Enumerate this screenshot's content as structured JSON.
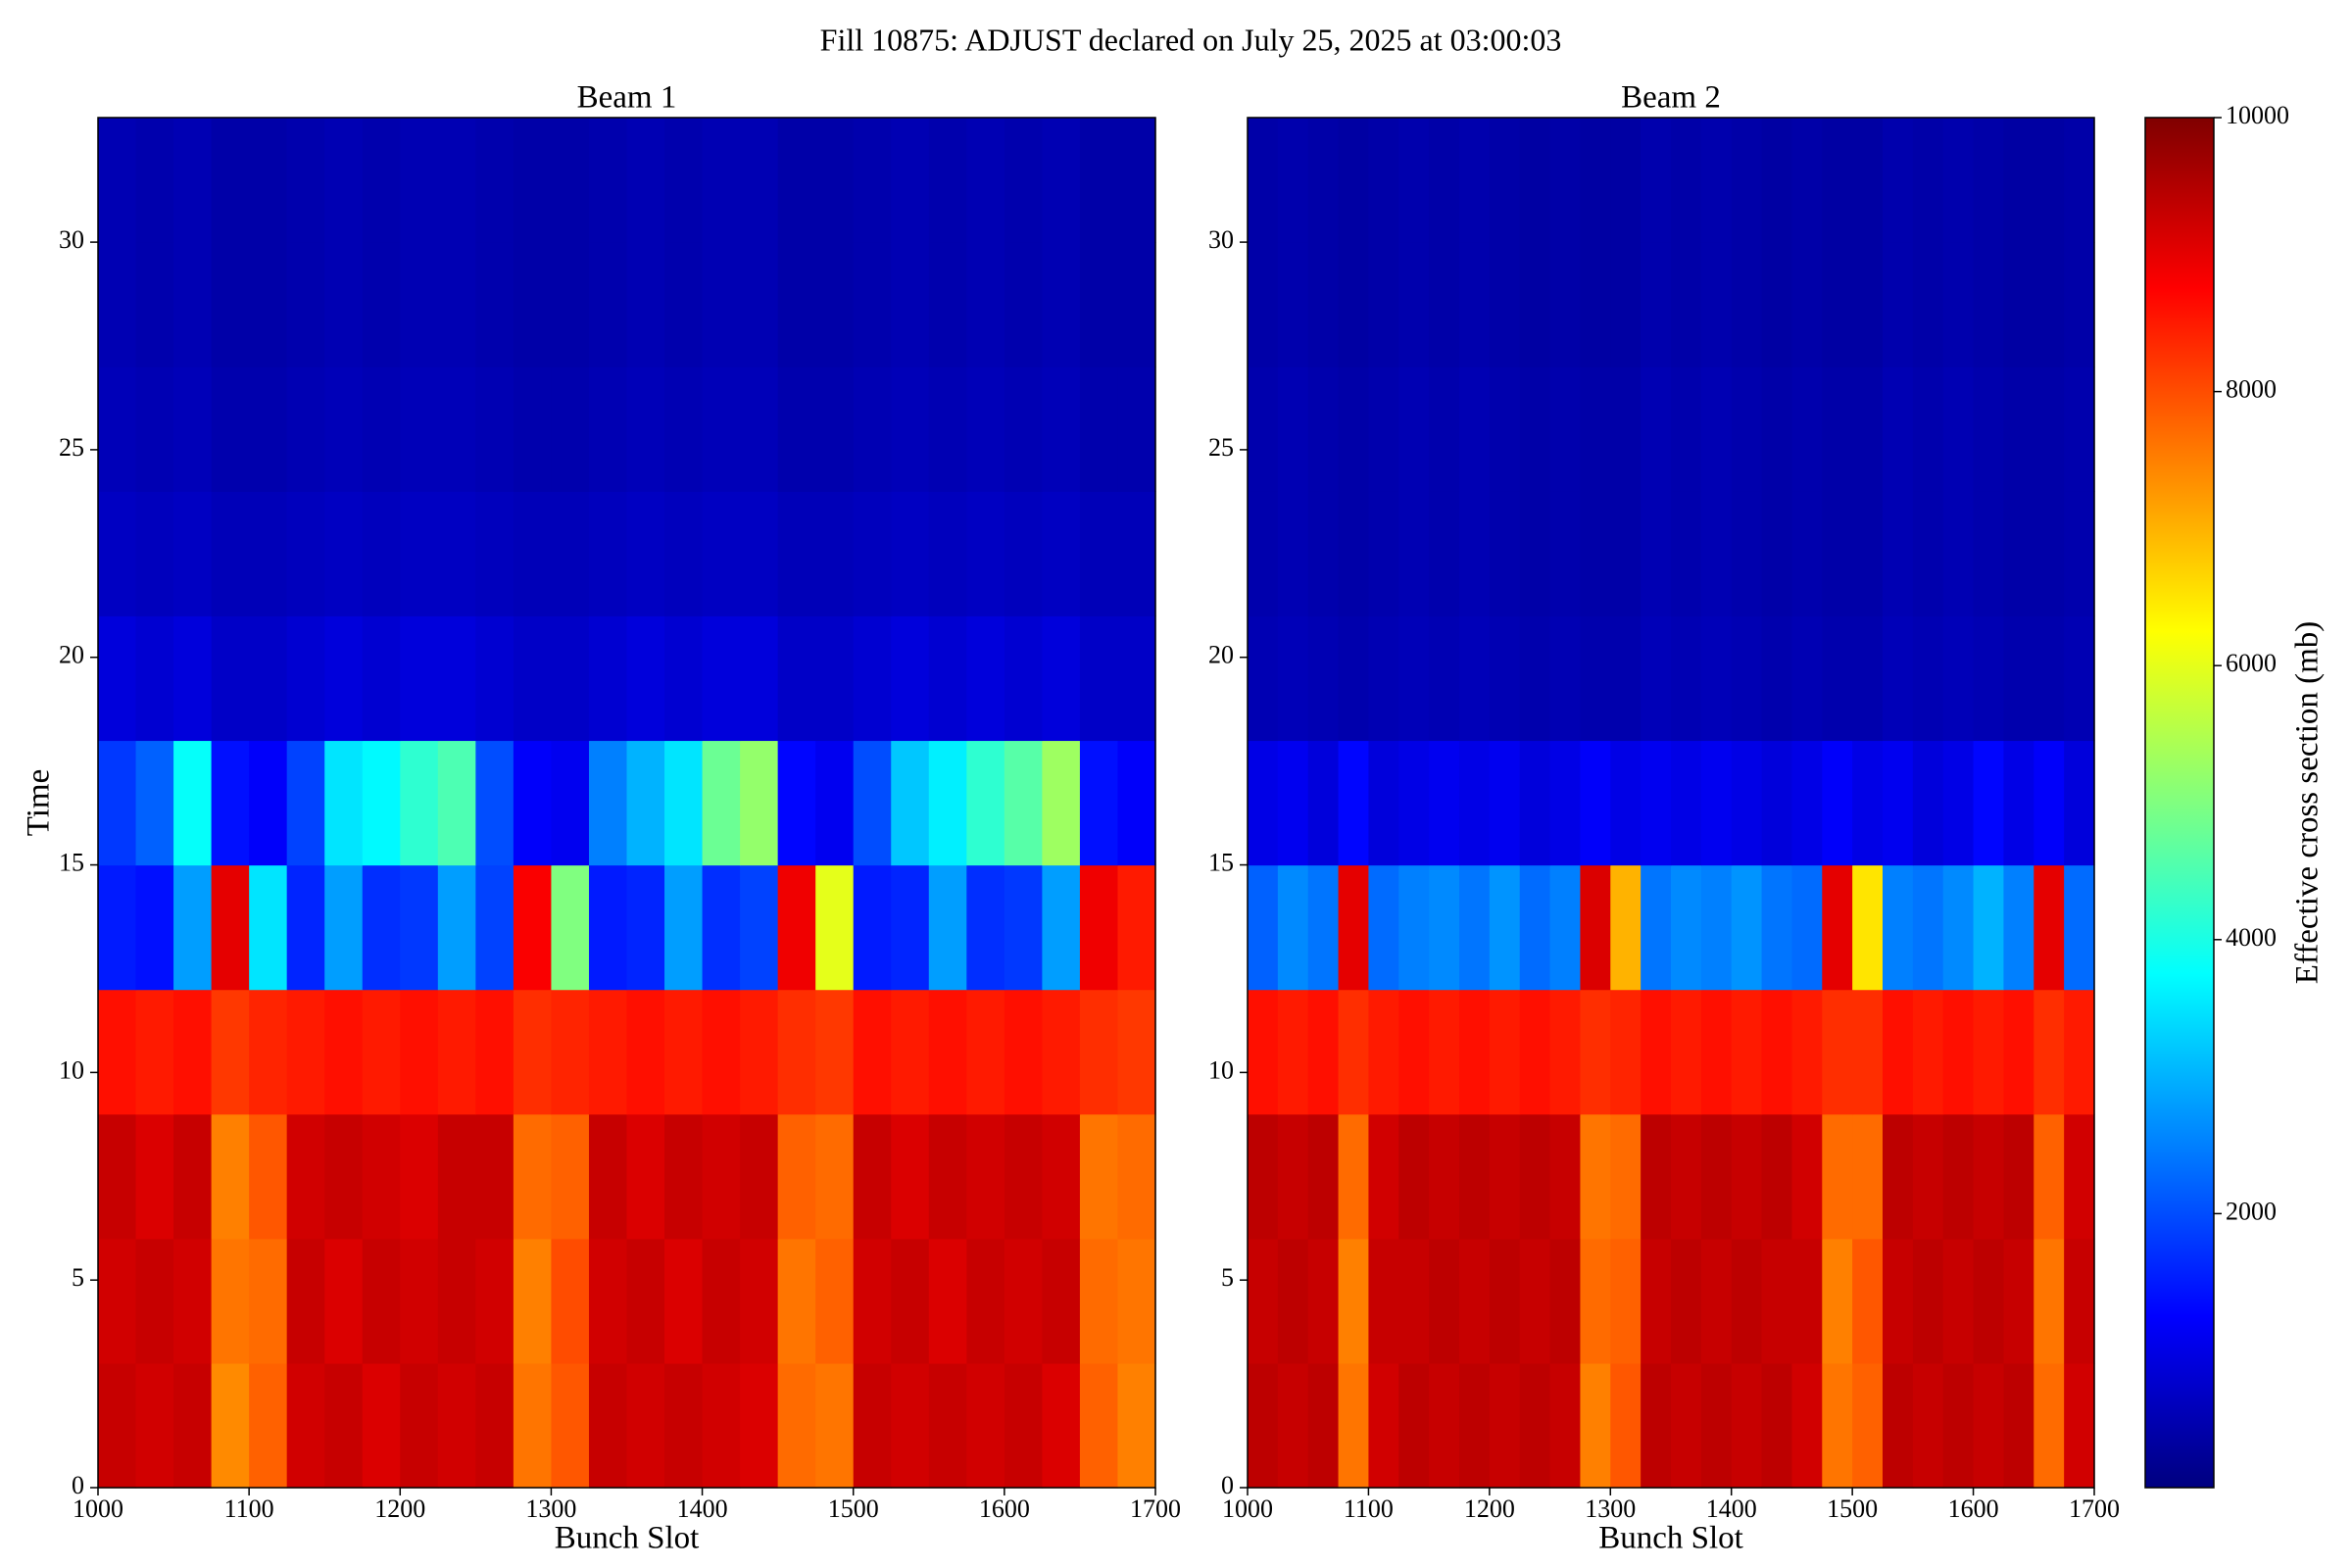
{
  "chart_data": {
    "type": "heatmap",
    "title": "Fill 10875: ADJUST declared on July 25, 2025 at 03:00:03",
    "colormap": "jet",
    "clim": [
      0,
      10000
    ],
    "cticks": [
      2000,
      4000,
      6000,
      8000,
      10000
    ],
    "colorbar_label": "Effective cross section (mb)",
    "panels": [
      {
        "title": "Beam 1",
        "xlabel": "Bunch Slot",
        "ylabel": "Time",
        "xlim": [
          1000,
          1700
        ],
        "xticks": [
          1000,
          1100,
          1200,
          1300,
          1400,
          1500,
          1600,
          1700
        ],
        "ylim": [
          0,
          33
        ],
        "yticks": [
          0,
          5,
          10,
          15,
          20,
          25,
          30
        ],
        "x_edges": [
          1000,
          1025,
          1050,
          1075,
          1100,
          1125,
          1150,
          1175,
          1200,
          1225,
          1250,
          1275,
          1300,
          1325,
          1350,
          1375,
          1400,
          1425,
          1450,
          1475,
          1500,
          1525,
          1550,
          1575,
          1600,
          1625,
          1650,
          1675,
          1700
        ],
        "y_edges": [
          0,
          3,
          6,
          9,
          12,
          15,
          18,
          21,
          24,
          27,
          30,
          33
        ],
        "z": [
          [
            9300,
            9200,
            9300,
            7400,
            7800,
            9200,
            9300,
            9100,
            9300,
            9200,
            9300,
            7600,
            7900,
            9300,
            9200,
            9300,
            9200,
            9100,
            7700,
            7600,
            9300,
            9200,
            9300,
            9200,
            9300,
            9100,
            7800,
            7500
          ],
          [
            9200,
            9300,
            9200,
            7600,
            7700,
            9300,
            9100,
            9300,
            9200,
            9300,
            9200,
            7500,
            8000,
            9200,
            9300,
            9100,
            9300,
            9200,
            7600,
            7800,
            9200,
            9300,
            9100,
            9300,
            9200,
            9300,
            7700,
            7600
          ],
          [
            9300,
            9100,
            9300,
            7500,
            7900,
            9200,
            9300,
            9200,
            9100,
            9300,
            9300,
            7700,
            7800,
            9300,
            9100,
            9300,
            9200,
            9300,
            7800,
            7700,
            9300,
            9100,
            9300,
            9200,
            9300,
            9200,
            7600,
            7700
          ],
          [
            8600,
            8500,
            8600,
            8200,
            8400,
            8500,
            8600,
            8500,
            8600,
            8500,
            8600,
            8300,
            8400,
            8500,
            8600,
            8500,
            8600,
            8500,
            8300,
            8200,
            8600,
            8500,
            8600,
            8500,
            8600,
            8500,
            8300,
            8200
          ],
          [
            1500,
            1400,
            2800,
            9000,
            3500,
            1600,
            2800,
            1700,
            1800,
            2800,
            1900,
            8800,
            5000,
            1500,
            1600,
            2800,
            1700,
            1900,
            8900,
            6000,
            1500,
            1600,
            2800,
            1700,
            1800,
            2800,
            8900,
            8500
          ],
          [
            1800,
            2200,
            3800,
            1400,
            1200,
            1900,
            3500,
            3700,
            4200,
            4500,
            2000,
            1200,
            1100,
            2500,
            3000,
            3500,
            4800,
            5200,
            1300,
            1100,
            2000,
            3200,
            3600,
            4200,
            4600,
            5300,
            1400,
            1200
          ],
          [
            900,
            800,
            900,
            700,
            700,
            800,
            900,
            800,
            900,
            900,
            800,
            700,
            700,
            800,
            900,
            800,
            900,
            900,
            700,
            700,
            800,
            900,
            800,
            900,
            800,
            900,
            700,
            700
          ],
          [
            650,
            600,
            650,
            550,
            550,
            600,
            650,
            600,
            650,
            650,
            600,
            550,
            550,
            600,
            650,
            600,
            650,
            650,
            550,
            550,
            600,
            650,
            600,
            650,
            600,
            650,
            550,
            550
          ],
          [
            550,
            500,
            550,
            450,
            450,
            500,
            550,
            500,
            550,
            550,
            500,
            450,
            450,
            500,
            550,
            500,
            550,
            550,
            450,
            450,
            500,
            550,
            500,
            550,
            500,
            550,
            450,
            450
          ],
          [
            500,
            450,
            500,
            400,
            400,
            450,
            500,
            450,
            500,
            500,
            450,
            400,
            400,
            450,
            500,
            450,
            500,
            500,
            400,
            400,
            450,
            500,
            450,
            500,
            450,
            500,
            400,
            400
          ],
          [
            500,
            450,
            500,
            400,
            400,
            450,
            500,
            450,
            500,
            500,
            450,
            400,
            400,
            450,
            500,
            450,
            500,
            500,
            400,
            400,
            450,
            500,
            450,
            500,
            450,
            500,
            400,
            400
          ]
        ]
      },
      {
        "title": "Beam 2",
        "xlabel": "Bunch Slot",
        "xlim": [
          1000,
          1700
        ],
        "xticks": [
          1000,
          1100,
          1200,
          1300,
          1400,
          1500,
          1600,
          1700
        ],
        "ylim": [
          0,
          33
        ],
        "yticks": [
          0,
          5,
          10,
          15,
          20,
          25,
          30
        ],
        "x_edges": [
          1000,
          1025,
          1050,
          1075,
          1100,
          1125,
          1150,
          1175,
          1200,
          1225,
          1250,
          1275,
          1300,
          1325,
          1350,
          1375,
          1400,
          1425,
          1450,
          1475,
          1500,
          1525,
          1550,
          1575,
          1600,
          1625,
          1650,
          1675,
          1700
        ],
        "y_edges": [
          0,
          3,
          6,
          9,
          12,
          15,
          18,
          21,
          24,
          27,
          30,
          33
        ],
        "z": [
          [
            9400,
            9300,
            9400,
            7600,
            9200,
            9400,
            9300,
            9400,
            9300,
            9400,
            9300,
            7500,
            7900,
            9400,
            9300,
            9400,
            9300,
            9400,
            9200,
            7600,
            7800,
            9400,
            9300,
            9400,
            9300,
            9400,
            7700,
            9200
          ],
          [
            9300,
            9400,
            9300,
            7500,
            9300,
            9300,
            9400,
            9300,
            9400,
            9300,
            9400,
            7700,
            7800,
            9300,
            9400,
            9300,
            9400,
            9300,
            9300,
            7500,
            7900,
            9300,
            9400,
            9300,
            9400,
            9300,
            7600,
            9300
          ],
          [
            9400,
            9300,
            9400,
            7700,
            9200,
            9400,
            9300,
            9400,
            9300,
            9400,
            9300,
            7600,
            7700,
            9400,
            9300,
            9400,
            9300,
            9400,
            9200,
            7700,
            7700,
            9400,
            9300,
            9400,
            9300,
            9400,
            7800,
            9200
          ],
          [
            8600,
            8500,
            8600,
            8300,
            8500,
            8600,
            8500,
            8600,
            8500,
            8600,
            8500,
            8300,
            8400,
            8600,
            8500,
            8600,
            8500,
            8600,
            8500,
            8300,
            8300,
            8600,
            8500,
            8600,
            8500,
            8600,
            8300,
            8500
          ],
          [
            2200,
            2600,
            2400,
            9000,
            2300,
            2500,
            2600,
            2400,
            2700,
            2300,
            2500,
            9100,
            7000,
            2400,
            2600,
            2500,
            2700,
            2400,
            2300,
            9000,
            6500,
            2500,
            2400,
            2600,
            3000,
            2500,
            9000,
            2300
          ],
          [
            1000,
            1100,
            900,
            1300,
            900,
            1000,
            1100,
            1000,
            1100,
            900,
            1000,
            1200,
            1000,
            1100,
            1000,
            1100,
            1000,
            900,
            1000,
            1200,
            1000,
            1100,
            900,
            1000,
            1300,
            1000,
            1200,
            900
          ],
          [
            500,
            550,
            500,
            450,
            500,
            550,
            500,
            550,
            500,
            450,
            500,
            450,
            450,
            550,
            500,
            550,
            500,
            450,
            500,
            450,
            450,
            550,
            500,
            550,
            500,
            450,
            450,
            500
          ],
          [
            450,
            500,
            450,
            400,
            450,
            500,
            450,
            500,
            450,
            400,
            450,
            400,
            400,
            500,
            450,
            500,
            450,
            400,
            450,
            400,
            400,
            500,
            450,
            500,
            450,
            400,
            400,
            450
          ],
          [
            450,
            500,
            450,
            400,
            450,
            500,
            450,
            500,
            450,
            400,
            450,
            400,
            400,
            500,
            450,
            500,
            450,
            400,
            450,
            400,
            400,
            500,
            450,
            500,
            450,
            400,
            400,
            450
          ],
          [
            400,
            450,
            400,
            350,
            400,
            450,
            400,
            450,
            400,
            350,
            400,
            350,
            350,
            450,
            400,
            450,
            400,
            350,
            400,
            350,
            350,
            450,
            400,
            450,
            400,
            350,
            350,
            400
          ],
          [
            400,
            450,
            400,
            350,
            400,
            450,
            400,
            450,
            400,
            350,
            400,
            350,
            350,
            450,
            400,
            450,
            400,
            350,
            400,
            350,
            350,
            450,
            400,
            450,
            400,
            350,
            350,
            400
          ]
        ]
      }
    ]
  }
}
